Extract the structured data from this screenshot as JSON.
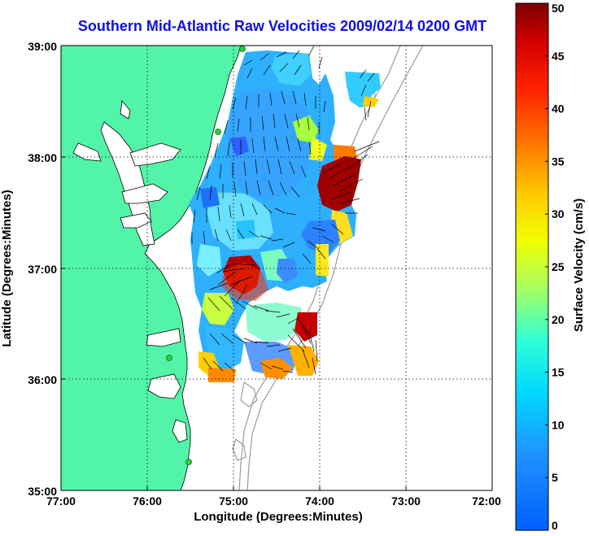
{
  "title": "Southern Mid-Atlantic Raw Velocities 2009/02/14 0200 GMT",
  "x_axis": {
    "label": "Longitude (Degrees:Minutes)",
    "ticks": [
      "77:00",
      "76:00",
      "75:00",
      "74:00",
      "73:00",
      "72:00"
    ]
  },
  "y_axis": {
    "label": "Latitude (Degrees:Minutes)",
    "ticks": [
      "39:00",
      "38:00",
      "37:00",
      "36:00",
      "35:00"
    ]
  },
  "colorbar": {
    "label": "Surface Velocity (cm/s)",
    "ticks": [
      "0",
      "5",
      "10",
      "15",
      "20",
      "25",
      "30",
      "35",
      "40",
      "45",
      "50"
    ],
    "range": [
      0,
      50
    ]
  },
  "colors": {
    "land": "#52f5a8",
    "water": "#ffffff",
    "bathymetry": "#9a9a9a",
    "title": "#1010e0",
    "station": "#2ecc40"
  },
  "icons": {
    "station": "radar-station-dot",
    "vector": "velocity-arrow"
  }
}
